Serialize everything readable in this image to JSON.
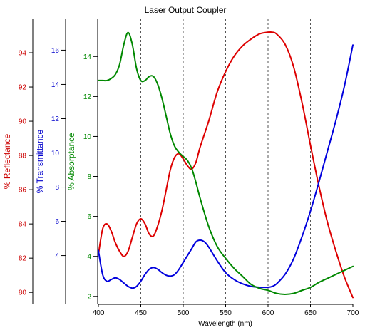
{
  "chart_data": {
    "type": "line",
    "title": "Laser Output Coupler",
    "xlabel": "Wavelength (nm)",
    "xlim": [
      400,
      700
    ],
    "x_ticks": [
      400,
      450,
      500,
      550,
      600,
      650,
      700
    ],
    "grid": "vertical dashed at 450, 500, 550, 600, 650",
    "axes": [
      {
        "id": "reflectance",
        "label": "% Reflectance",
        "color": "#cc0000",
        "ylim": [
          79.3,
          96.0
        ],
        "ticks": [
          80,
          82,
          84,
          86,
          88,
          90,
          92,
          94
        ]
      },
      {
        "id": "transmittance",
        "label": "% Transmittance",
        "color": "#0000cc",
        "ylim": [
          1.15,
          17.85
        ],
        "ticks": [
          4,
          6,
          8,
          10,
          12,
          14,
          16
        ]
      },
      {
        "id": "absorptance",
        "label": "% Absorptance",
        "color": "#008800",
        "ylim": [
          1.6,
          15.9
        ],
        "ticks": [
          2,
          4,
          6,
          8,
          10,
          12,
          14
        ]
      }
    ],
    "series": [
      {
        "axis": "reflectance",
        "color": "#dd0000",
        "x": [
          400,
          405,
          410,
          415,
          420,
          425,
          430,
          435,
          440,
          445,
          450,
          455,
          460,
          465,
          470,
          475,
          480,
          485,
          490,
          495,
          500,
          505,
          510,
          515,
          520,
          530,
          540,
          550,
          560,
          570,
          580,
          590,
          600,
          605,
          610,
          620,
          630,
          640,
          650,
          660,
          670,
          680,
          690,
          700
        ],
        "values": [
          82.2,
          83.7,
          84.0,
          83.6,
          82.9,
          82.4,
          82.1,
          82.4,
          83.2,
          84.0,
          84.3,
          84.0,
          83.4,
          83.3,
          83.9,
          84.8,
          86.0,
          87.2,
          87.9,
          88.1,
          87.8,
          87.4,
          87.2,
          87.6,
          88.5,
          90.0,
          91.7,
          92.9,
          93.8,
          94.4,
          94.8,
          95.1,
          95.2,
          95.2,
          95.1,
          94.5,
          93.2,
          91.1,
          88.6,
          86.2,
          84.1,
          82.4,
          80.9,
          79.7
        ]
      },
      {
        "axis": "transmittance",
        "color": "#0000dd",
        "x": [
          400,
          405,
          410,
          415,
          420,
          425,
          430,
          435,
          440,
          445,
          450,
          455,
          460,
          465,
          470,
          475,
          480,
          485,
          490,
          495,
          500,
          505,
          510,
          515,
          520,
          525,
          530,
          540,
          550,
          560,
          570,
          580,
          590,
          600,
          605,
          610,
          620,
          630,
          640,
          650,
          660,
          670,
          680,
          690,
          700
        ],
        "values": [
          4.3,
          2.9,
          2.5,
          2.6,
          2.7,
          2.6,
          2.4,
          2.2,
          2.1,
          2.2,
          2.5,
          2.9,
          3.2,
          3.3,
          3.2,
          3.0,
          2.85,
          2.8,
          2.9,
          3.2,
          3.6,
          4.0,
          4.4,
          4.8,
          4.9,
          4.8,
          4.5,
          3.7,
          3.0,
          2.6,
          2.35,
          2.2,
          2.15,
          2.15,
          2.2,
          2.35,
          2.9,
          3.8,
          5.1,
          6.6,
          8.3,
          10.1,
          11.9,
          13.9,
          16.3
        ]
      },
      {
        "axis": "absorptance",
        "color": "#008800",
        "x": [
          400,
          405,
          410,
          415,
          420,
          425,
          430,
          435,
          440,
          445,
          450,
          455,
          460,
          465,
          470,
          475,
          480,
          485,
          490,
          495,
          500,
          505,
          510,
          515,
          520,
          530,
          540,
          550,
          560,
          570,
          580,
          590,
          600,
          610,
          620,
          630,
          640,
          650,
          660,
          670,
          680,
          690,
          700
        ],
        "values": [
          12.8,
          12.8,
          12.8,
          12.9,
          13.1,
          13.6,
          14.6,
          15.2,
          14.6,
          13.4,
          12.8,
          12.8,
          13.0,
          13.0,
          12.6,
          11.9,
          11.0,
          10.1,
          9.5,
          9.2,
          9.0,
          8.8,
          8.4,
          7.7,
          6.9,
          5.5,
          4.5,
          3.9,
          3.4,
          3.0,
          2.6,
          2.4,
          2.3,
          2.15,
          2.1,
          2.15,
          2.3,
          2.45,
          2.7,
          2.9,
          3.1,
          3.3,
          3.5
        ]
      }
    ]
  }
}
